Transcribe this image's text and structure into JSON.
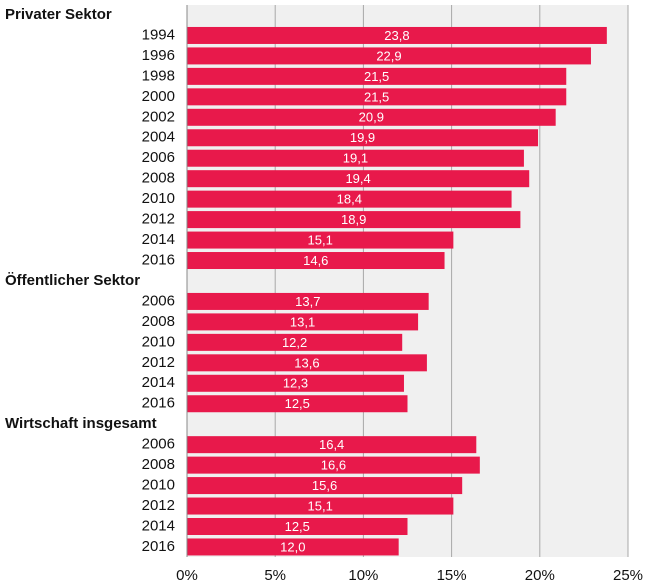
{
  "chart_data": {
    "type": "bar",
    "orientation": "horizontal",
    "color": "#e8194b",
    "groups": [
      {
        "name": "Privater Sektor",
        "categories": [
          "1994",
          "1996",
          "1998",
          "2000",
          "2002",
          "2004",
          "2006",
          "2008",
          "2010",
          "2012",
          "2014",
          "2016"
        ],
        "values": [
          23.8,
          22.9,
          21.5,
          21.5,
          20.9,
          19.9,
          19.1,
          19.4,
          18.4,
          18.9,
          15.1,
          14.6
        ],
        "value_labels": [
          "23,8",
          "22,9",
          "21,5",
          "21,5",
          "20,9",
          "19,9",
          "19,1",
          "19,4",
          "18,4",
          "18,9",
          "15,1",
          "14,6"
        ]
      },
      {
        "name": "Öffentlicher Sektor",
        "categories": [
          "2006",
          "2008",
          "2010",
          "2012",
          "2014",
          "2016"
        ],
        "values": [
          13.7,
          13.1,
          12.2,
          13.6,
          12.3,
          12.5
        ],
        "value_labels": [
          "13,7",
          "13,1",
          "12,2",
          "13,6",
          "12,3",
          "12,5"
        ]
      },
      {
        "name": "Wirtschaft insgesamt",
        "categories": [
          "2006",
          "2008",
          "2010",
          "2012",
          "2014",
          "2016"
        ],
        "values": [
          16.4,
          16.6,
          15.6,
          15.1,
          12.5,
          12.0
        ],
        "value_labels": [
          "16,4",
          "16,6",
          "15,6",
          "15,1",
          "12,5",
          "12,0"
        ]
      }
    ],
    "xlim": [
      0,
      25
    ],
    "xticks": [
      {
        "value": 0,
        "label": "0%"
      },
      {
        "value": 5,
        "label": "5%"
      },
      {
        "value": 10,
        "label": "10%"
      },
      {
        "value": 15,
        "label": "15%"
      },
      {
        "value": 20,
        "label": "20%"
      },
      {
        "value": 25,
        "label": "25%"
      }
    ],
    "grid": true
  }
}
